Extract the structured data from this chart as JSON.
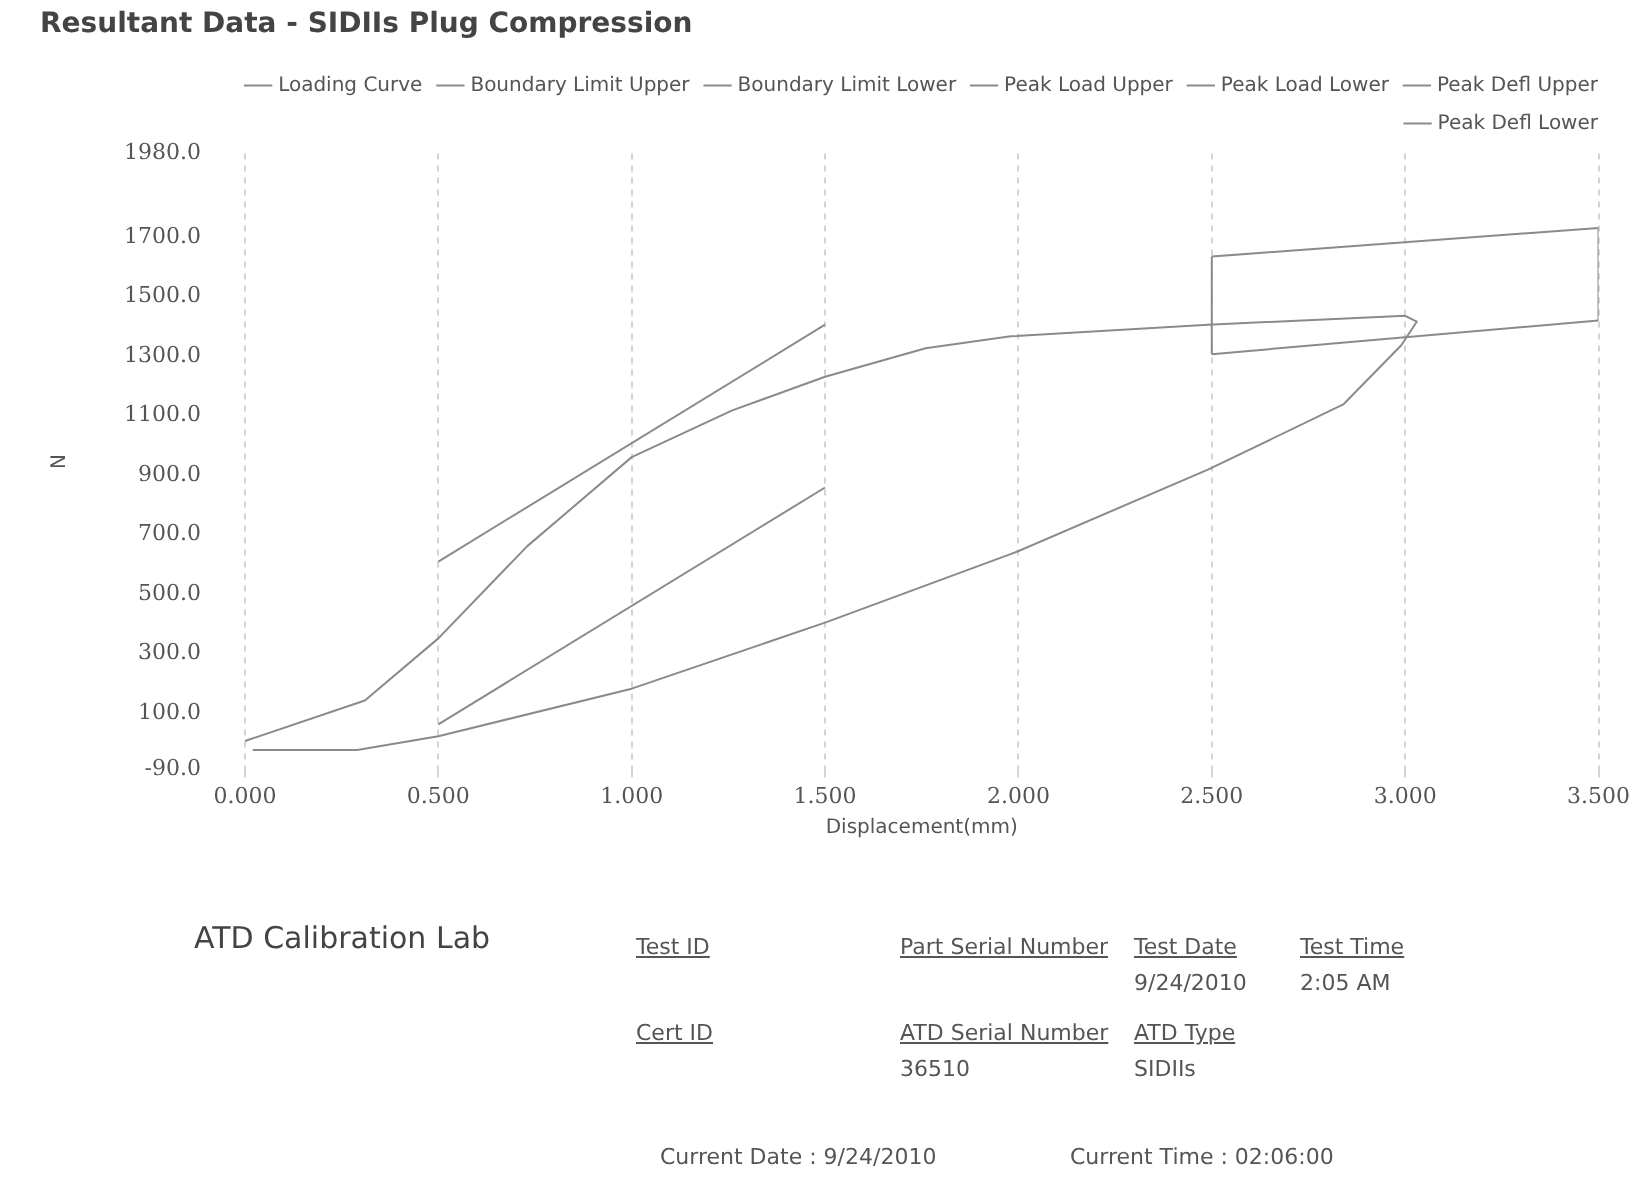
{
  "chart_data": {
    "type": "line",
    "title": "Resultant Data - SIDIIs Plug Compression",
    "xlabel": "Displacement(mm)",
    "ylabel": "N",
    "xlim": [
      0,
      3.5
    ],
    "ylim": [
      -90,
      1980
    ],
    "xticks": [
      {
        "value": 0,
        "label": "0.000"
      },
      {
        "value": 0.5,
        "label": "0.500"
      },
      {
        "value": 1,
        "label": "1.000"
      },
      {
        "value": 1.5,
        "label": "1.500"
      },
      {
        "value": 2,
        "label": "2.000"
      },
      {
        "value": 2.5,
        "label": "2.500"
      },
      {
        "value": 3,
        "label": "3.000"
      },
      {
        "value": 3.5,
        "label": "3.500"
      }
    ],
    "yticks": [
      {
        "value": -90,
        "label": "-90.0"
      },
      {
        "value": 100,
        "label": "100.0"
      },
      {
        "value": 300,
        "label": "300.0"
      },
      {
        "value": 500,
        "label": "500.0"
      },
      {
        "value": 700,
        "label": "700.0"
      },
      {
        "value": 900,
        "label": "900.0"
      },
      {
        "value": 1100,
        "label": "1100.0"
      },
      {
        "value": 1300,
        "label": "1300.0"
      },
      {
        "value": 1500,
        "label": "1500.0"
      },
      {
        "value": 1700,
        "label": "1700.0"
      },
      {
        "value": 1980,
        "label": "1980.0"
      }
    ],
    "grid": "x",
    "legend": "top right",
    "marker": "none",
    "line_style": "solid",
    "series": [
      {
        "name": "Loading Curve",
        "color": "#8a8a8a",
        "x": [
          0,
          0.31,
          0.5,
          0.73,
          1.0,
          1.26,
          1.5,
          1.76,
          1.98,
          2.49,
          3.0,
          3.03,
          2.99,
          2.84,
          2.49,
          1.99,
          1.5,
          1.0,
          0.5,
          0.29,
          0.02
        ],
        "values": [
          6,
          142,
          351,
          661,
          960,
          1117,
          1230,
          1326,
          1366,
          1405,
          1435,
          1415,
          1336,
          1137,
          918,
          639,
          404,
          182,
          22,
          -24,
          -24
        ]
      },
      {
        "name": "Boundary Limit Upper",
        "color": "#8a8a8a",
        "x": [
          0.5,
          1.5
        ],
        "values": [
          609,
          1405
        ]
      },
      {
        "name": "Boundary Limit Lower",
        "color": "#8a8a8a",
        "x": [
          0.5,
          1.5
        ],
        "values": [
          62,
          858
        ]
      },
      {
        "name": "Peak Load Upper",
        "color": "#8a8a8a",
        "x": [
          2.5,
          3.5
        ],
        "values": [
          1634,
          1730
        ]
      },
      {
        "name": "Peak Load Lower",
        "color": "#8a8a8a",
        "x": [
          2.5,
          3.5
        ],
        "values": [
          1306,
          1419
        ]
      },
      {
        "name": "Peak Defl Upper",
        "color": "#8a8a8a",
        "x": [
          3.5,
          3.5
        ],
        "values": [
          1419,
          1730
        ]
      },
      {
        "name": "Peak Defl Lower",
        "color": "#8a8a8a",
        "x": [
          2.5,
          2.5
        ],
        "values": [
          1306,
          1634
        ]
      }
    ],
    "annotations": [
      "ATD Calibration Lab",
      "Test ID",
      "Part Serial Number",
      "Test Date",
      "Test Time",
      "9/24/2010",
      "2:05 AM",
      "Cert ID",
      "ATD Serial Number",
      "ATD Type",
      "36510",
      "SIDIIs",
      "Current Date : 9/24/2010",
      "Current Time : 02:06:00"
    ]
  }
}
